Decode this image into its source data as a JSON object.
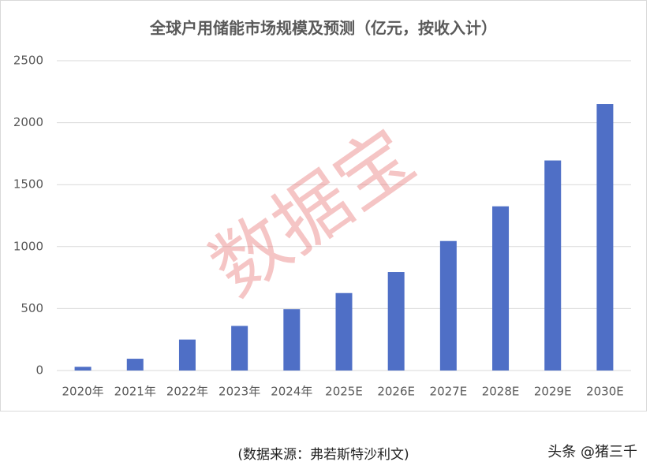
{
  "chart_data": {
    "type": "bar",
    "title": "全球户用储能市场规模及预测（亿元，按收入计）",
    "categories": [
      "2020年",
      "2021年",
      "2022年",
      "2023年",
      "2024年",
      "2025E",
      "2026E",
      "2027E",
      "2028E",
      "2029E",
      "2030E"
    ],
    "values": [
      30,
      95,
      250,
      360,
      495,
      625,
      795,
      1045,
      1325,
      1695,
      2150
    ],
    "color": "#4f6fc6",
    "ylim": [
      0,
      2500
    ],
    "yticks": [
      0,
      500,
      1000,
      1500,
      2000,
      2500
    ],
    "grid": true
  },
  "watermark": "数据宝",
  "source": "(数据来源：弗若斯特沙利文)",
  "credit": "头条 @猪三千"
}
